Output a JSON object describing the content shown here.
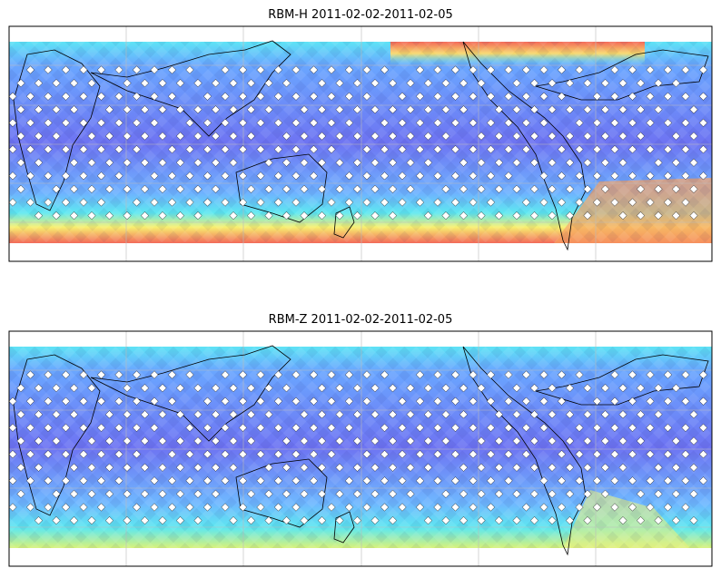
{
  "panels": [
    {
      "title": "RBM-H 2011-02-02-2011-02-05"
    },
    {
      "title": "RBM-Z 2011-02-02-2011-02-05"
    }
  ]
}
